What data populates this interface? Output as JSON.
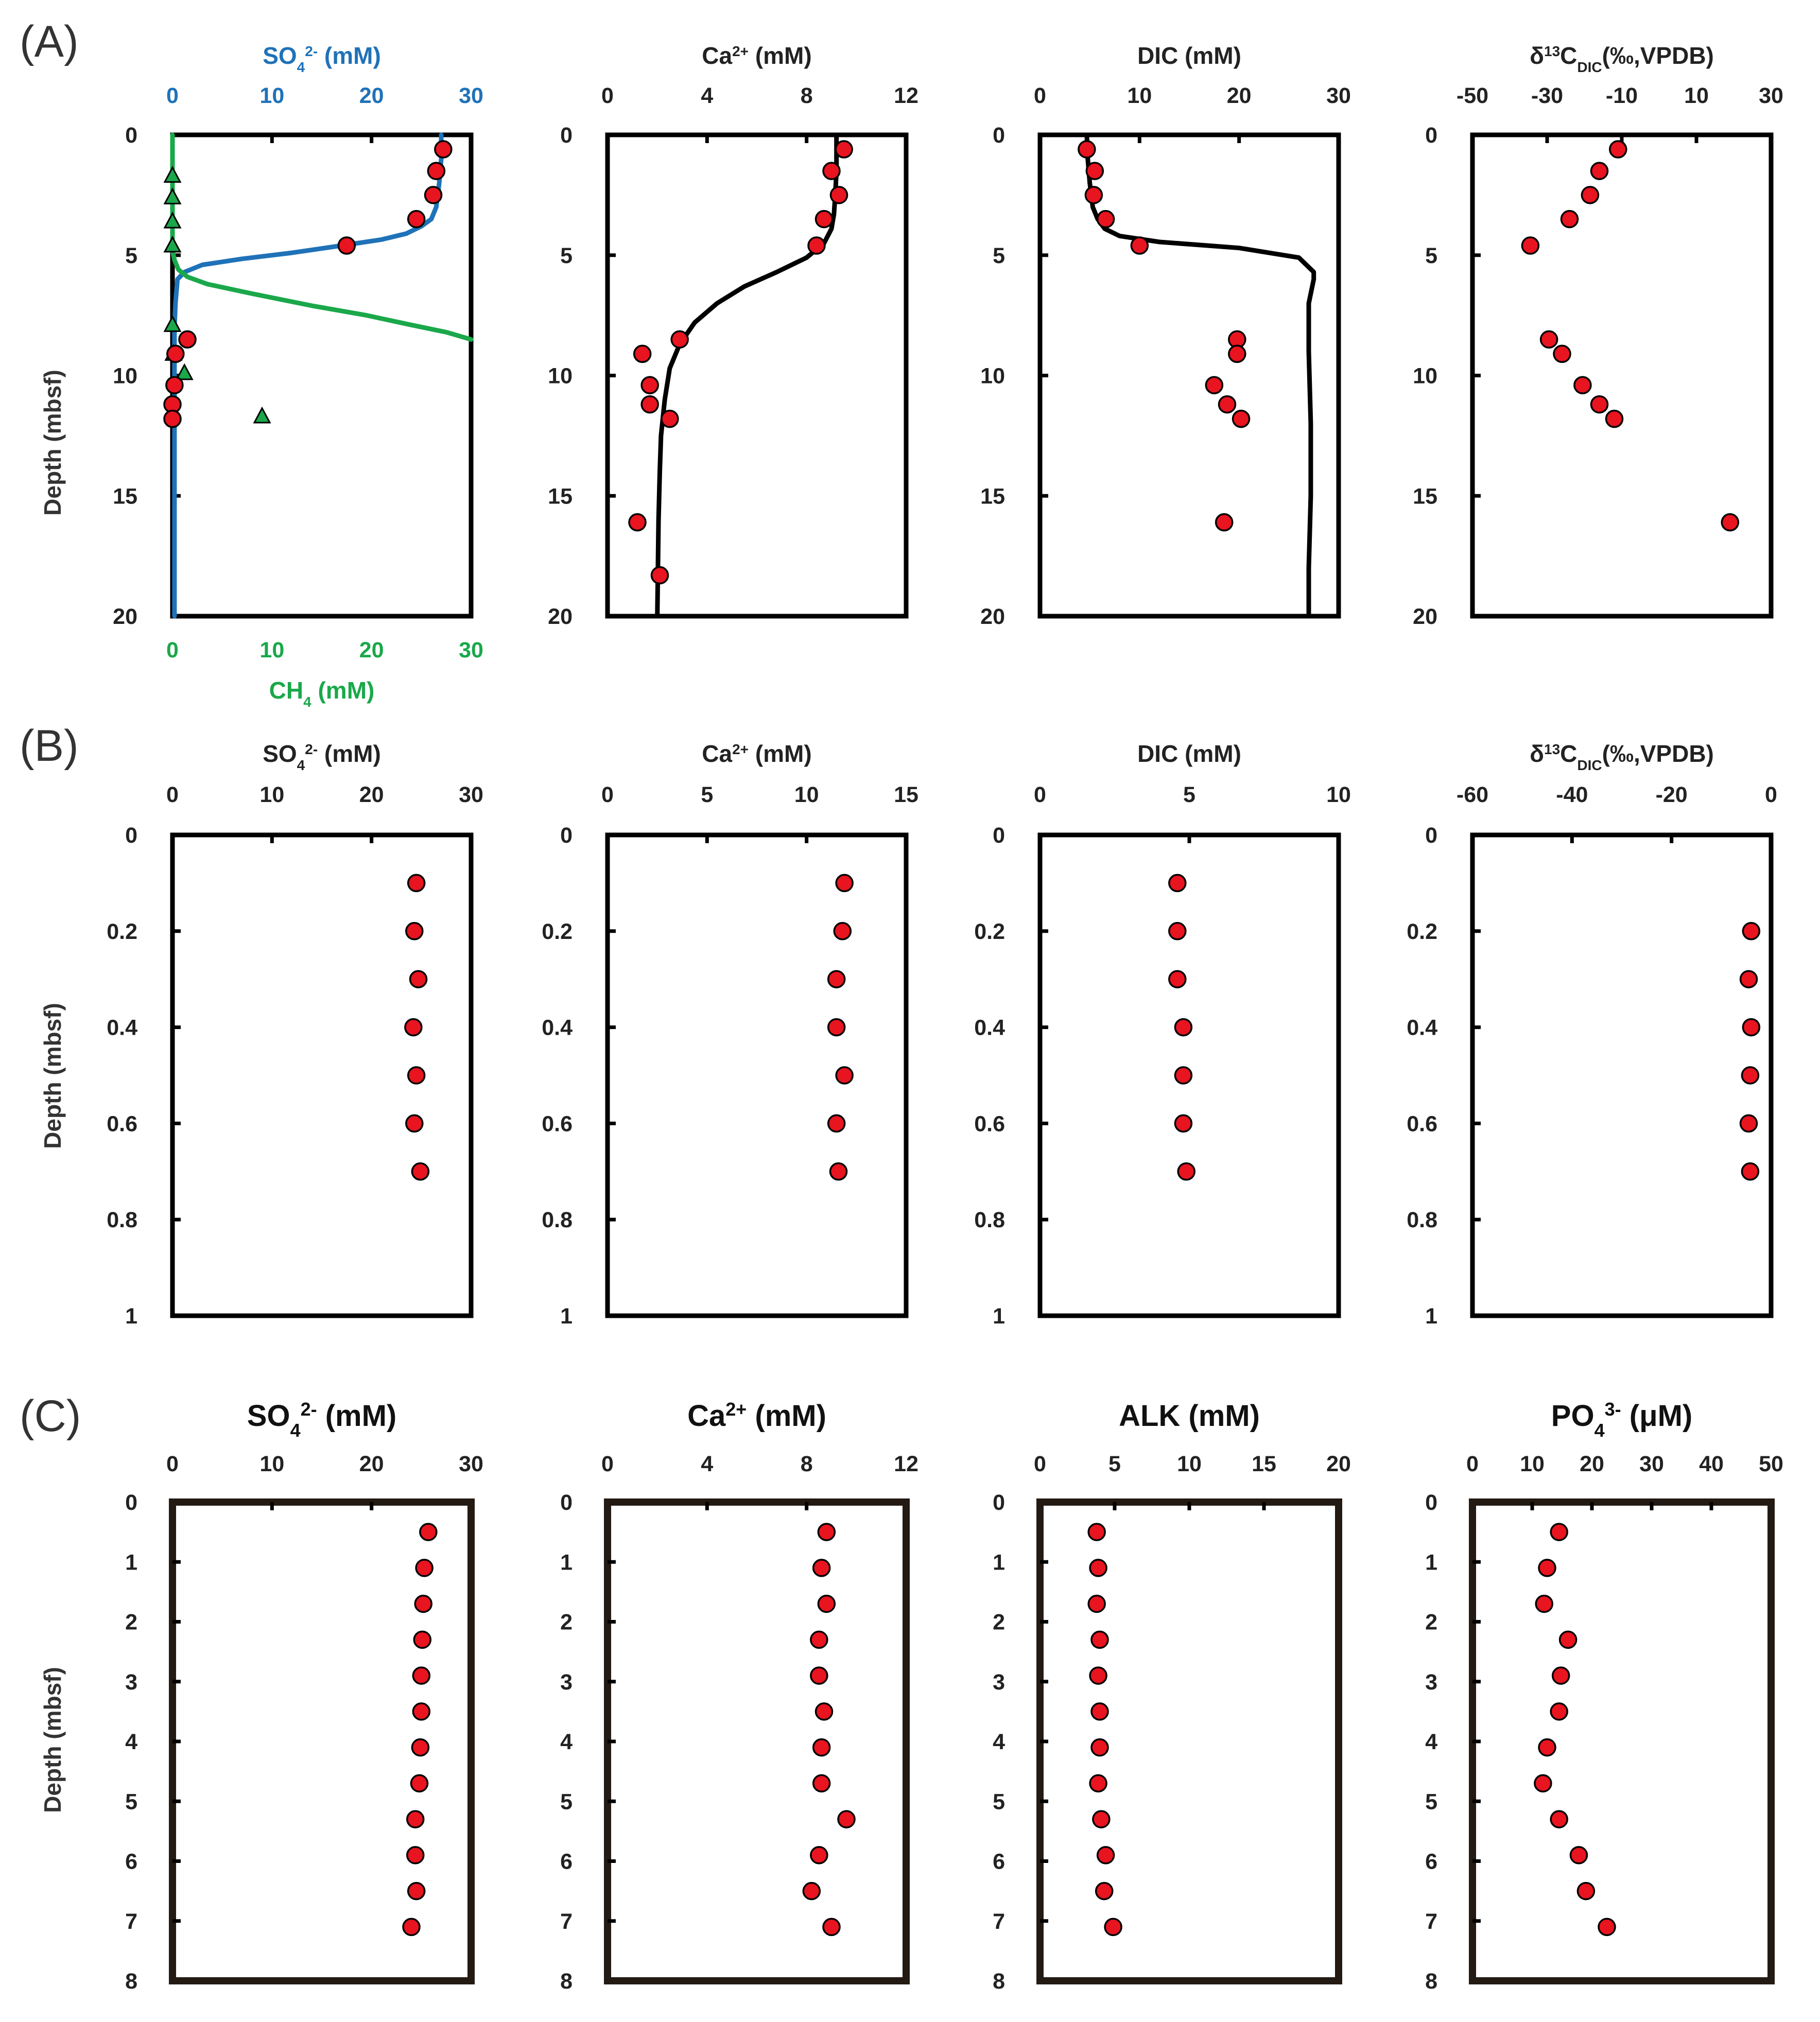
{
  "figure": {
    "ylabel": "Depth (mbsf)",
    "colors": {
      "point": "#e8141f",
      "sulfate": "#1f72b8",
      "methane": "#1aa84a",
      "frame": "#000000"
    },
    "rows": [
      {
        "letter": "(A)",
        "yticks": [
          "0",
          "5",
          "10",
          "15",
          "20"
        ],
        "chart_data": [
          {
            "type": "line",
            "title": "SO42- (mM)",
            "title_parts": [
              "SO",
              "4",
              "2-",
              " (mM)"
            ],
            "title_color": "#1f72b8",
            "tick_color": "#1f72b8",
            "xlim": [
              0,
              30
            ],
            "ylim": [
              0,
              20
            ],
            "xticks": [
              "0",
              "10",
              "20",
              "30"
            ],
            "bottom_axis": {
              "title_parts": [
                "CH",
                "4",
                "",
                " (mM)"
              ],
              "color": "#1aa84a",
              "xticks": [
                "0",
                "10",
                "20",
                "30"
              ],
              "xlim": [
                0,
                30
              ]
            },
            "series": [
              {
                "name": "SO4 model",
                "kind": "line",
                "color": "#1f72b8",
                "x": [
                  27,
                  27,
                  26.8,
                  26.5,
                  26,
                  25,
                  23.5,
                  21,
                  17,
                  12,
                  7,
                  3,
                  1.2,
                  0.5,
                  0.3,
                  0.2,
                  0.2,
                  0.2,
                  0.2,
                  0.2,
                  0.2
                ],
                "y": [
                  0,
                  1,
                  2,
                  3,
                  3.5,
                  3.8,
                  4.1,
                  4.35,
                  4.6,
                  4.9,
                  5.15,
                  5.4,
                  5.7,
                  6,
                  7,
                  8,
                  10,
                  12,
                  15,
                  18,
                  20
                ]
              },
              {
                "name": "CH4 model",
                "kind": "line",
                "color": "#1aa84a",
                "x": [
                  0,
                  0,
                  0,
                  0.2,
                  0.6,
                  1.5,
                  3.5,
                  8,
                  14,
                  19.5,
                  24,
                  27.5,
                  30
                ],
                "y": [
                  0,
                  4,
                  4.8,
                  5.2,
                  5.6,
                  5.9,
                  6.2,
                  6.6,
                  7.1,
                  7.5,
                  7.9,
                  8.2,
                  8.5
                ]
              },
              {
                "name": "CH4 measured",
                "kind": "triangle",
                "color": "#1aa84a",
                "x": [
                  0,
                  0,
                  0,
                  0,
                  0,
                  0.1,
                  1.2,
                  9
                ],
                "y": [
                  1.7,
                  2.6,
                  3.6,
                  4.6,
                  7.9,
                  9.1,
                  9.9,
                  11.7
                ]
              },
              {
                "name": "SO4 measured",
                "kind": "point",
                "x": [
                  27.2,
                  26.5,
                  26.2,
                  24.5,
                  17.5,
                  1.5,
                  0.3,
                  0.2,
                  0,
                  0
                ],
                "y": [
                  0.6,
                  1.5,
                  2.5,
                  3.5,
                  4.6,
                  8.5,
                  9.1,
                  10.4,
                  11.2,
                  11.8
                ]
              }
            ]
          },
          {
            "type": "line",
            "title": "Ca2+ (mM)",
            "title_parts": [
              "Ca",
              "",
              "2+",
              " (mM)"
            ],
            "xlim": [
              0,
              12
            ],
            "ylim": [
              0,
              20
            ],
            "xticks": [
              "0",
              "4",
              "8",
              "12"
            ],
            "series": [
              {
                "name": "Ca model",
                "kind": "line",
                "color": "#000000",
                "x": [
                  9.2,
                  9.2,
                  9.15,
                  9.1,
                  9.0,
                  8.7,
                  8.0,
                  6.8,
                  5.5,
                  4.4,
                  3.5,
                  2.9,
                  2.5,
                  2.3,
                  2.15,
                  2.1,
                  2.05,
                  2.0
                ],
                "y": [
                  0,
                  1.5,
                  2.5,
                  3.3,
                  3.9,
                  4.5,
                  5.1,
                  5.7,
                  6.3,
                  7.0,
                  7.8,
                  8.7,
                  9.7,
                  11,
                  12.5,
                  14,
                  16,
                  20
                ]
              },
              {
                "name": "Ca measured",
                "kind": "point",
                "x": [
                  9.5,
                  9.0,
                  9.3,
                  8.7,
                  8.4,
                  2.9,
                  1.4,
                  1.7,
                  1.7,
                  2.5,
                  1.2,
                  2.1
                ],
                "y": [
                  0.6,
                  1.5,
                  2.5,
                  3.5,
                  4.6,
                  8.5,
                  9.1,
                  10.4,
                  11.2,
                  11.8,
                  16.1,
                  18.3
                ]
              }
            ]
          },
          {
            "type": "line",
            "title": "DIC (mM)",
            "title_parts": [
              "DIC",
              "",
              "",
              " (mM)"
            ],
            "xlim": [
              0,
              30
            ],
            "ylim": [
              0,
              20
            ],
            "xticks": [
              "0",
              "10",
              "20",
              "30"
            ],
            "series": [
              {
                "name": "DIC model",
                "kind": "line",
                "color": "#000000",
                "x": [
                  4.7,
                  4.8,
                  5.0,
                  5.3,
                  5.8,
                  6.5,
                  8,
                  12,
                  20,
                  26,
                  27.5,
                  27.5,
                  27,
                  27,
                  27.2,
                  27.2,
                  27,
                  27
                ],
                "y": [
                  0,
                  1,
                  2,
                  3,
                  3.5,
                  3.9,
                  4.2,
                  4.45,
                  4.7,
                  5.1,
                  5.7,
                  6.0,
                  7,
                  9,
                  12,
                  15,
                  18,
                  20
                ]
              },
              {
                "name": "DIC measured",
                "kind": "point",
                "x": [
                  4.7,
                  5.5,
                  5.4,
                  6.6,
                  10,
                  19.8,
                  19.8,
                  17.5,
                  18.8,
                  20.2,
                  18.5
                ],
                "y": [
                  0.6,
                  1.5,
                  2.5,
                  3.5,
                  4.6,
                  8.5,
                  9.1,
                  10.4,
                  11.2,
                  11.8,
                  16.1
                ]
              }
            ]
          },
          {
            "type": "scatter",
            "title": "δ13CDIC (‰, VPDB)",
            "title_parts": [
              "δ",
              "DIC",
              "13",
              "C",
              "(‰,VPDB)"
            ],
            "xlim": [
              -50,
              30
            ],
            "ylim": [
              0,
              20
            ],
            "xticks": [
              "-50",
              "-30",
              "-10",
              "10",
              "30"
            ],
            "series": [
              {
                "name": "δ13C-DIC",
                "kind": "point",
                "x": [
                  -11,
                  -16,
                  -18.5,
                  -24,
                  -34.5,
                  -29.5,
                  -26,
                  -20.5,
                  -16,
                  -12,
                  19
                ],
                "y": [
                  0.6,
                  1.5,
                  2.5,
                  3.5,
                  4.6,
                  8.5,
                  9.1,
                  10.4,
                  11.2,
                  11.8,
                  16.1
                ]
              }
            ]
          }
        ]
      },
      {
        "letter": "(B)",
        "yticks": [
          "0",
          "0.2",
          "0.4",
          "0.6",
          "0.8",
          "1"
        ],
        "chart_data": [
          {
            "type": "scatter",
            "title": "SO42- (mM)",
            "title_parts": [
              "SO",
              "4",
              "2-",
              " (mM)"
            ],
            "xlim": [
              0,
              30
            ],
            "ylim": [
              0,
              1
            ],
            "xticks": [
              "0",
              "10",
              "20",
              "30"
            ],
            "series": [
              {
                "name": "SO4",
                "kind": "point",
                "x": [
                  24.5,
                  24.3,
                  24.7,
                  24.2,
                  24.5,
                  24.3,
                  24.9
                ],
                "y": [
                  0.1,
                  0.2,
                  0.3,
                  0.4,
                  0.5,
                  0.6,
                  0.7
                ]
              }
            ]
          },
          {
            "type": "scatter",
            "title": "Ca2+ (mM)",
            "title_parts": [
              "Ca",
              "",
              "2+",
              " (mM)"
            ],
            "xlim": [
              0,
              15
            ],
            "ylim": [
              0,
              1
            ],
            "xticks": [
              "0",
              "5",
              "10",
              "15"
            ],
            "series": [
              {
                "name": "Ca",
                "kind": "point",
                "x": [
                  11.9,
                  11.8,
                  11.5,
                  11.5,
                  11.9,
                  11.5,
                  11.6
                ],
                "y": [
                  0.1,
                  0.2,
                  0.3,
                  0.4,
                  0.5,
                  0.6,
                  0.7
                ]
              }
            ]
          },
          {
            "type": "scatter",
            "title": "DIC (mM)",
            "title_parts": [
              "DIC",
              "",
              "",
              " (mM)"
            ],
            "xlim": [
              0,
              10
            ],
            "ylim": [
              0,
              1
            ],
            "xticks": [
              "0",
              "5",
              "10"
            ],
            "series": [
              {
                "name": "DIC",
                "kind": "point",
                "x": [
                  4.6,
                  4.6,
                  4.6,
                  4.8,
                  4.8,
                  4.8,
                  4.9
                ],
                "y": [
                  0.1,
                  0.2,
                  0.3,
                  0.4,
                  0.5,
                  0.6,
                  0.7
                ]
              }
            ]
          },
          {
            "type": "scatter",
            "title": "δ13CDIC (‰, VPDB)",
            "title_parts": [
              "δ",
              "DIC",
              "13",
              "C",
              "(‰,VPDB)"
            ],
            "xlim": [
              -60,
              0
            ],
            "ylim": [
              0,
              1
            ],
            "xticks": [
              "-60",
              "-40",
              "-20",
              "0"
            ],
            "series": [
              {
                "name": "δ13C-DIC",
                "kind": "point",
                "x": [
                  -4,
                  -4.5,
                  -4,
                  -4.2,
                  -4.5,
                  -4.2
                ],
                "y": [
                  0.2,
                  0.3,
                  0.4,
                  0.5,
                  0.6,
                  0.7
                ]
              }
            ]
          }
        ]
      },
      {
        "letter": "(C)",
        "yticks": [
          "0",
          "1",
          "2",
          "3",
          "4",
          "5",
          "6",
          "7",
          "8"
        ],
        "chart_data": [
          {
            "type": "scatter",
            "title": "SO42- (mM)",
            "title_parts": [
              "SO",
              "4",
              "2-",
              " (mM)"
            ],
            "xlim": [
              0,
              30
            ],
            "ylim": [
              0,
              8
            ],
            "xticks": [
              "0",
              "10",
              "20",
              "30"
            ],
            "series": [
              {
                "name": "SO4",
                "kind": "point",
                "x": [
                  25.7,
                  25.3,
                  25.2,
                  25.1,
                  25.0,
                  25.0,
                  24.9,
                  24.8,
                  24.4,
                  24.4,
                  24.5,
                  24.0
                ],
                "y": [
                  0.5,
                  1.1,
                  1.7,
                  2.3,
                  2.9,
                  3.5,
                  4.1,
                  4.7,
                  5.3,
                  5.9,
                  6.5,
                  7.1
                ]
              }
            ]
          },
          {
            "type": "scatter",
            "title": "Ca2+ (mM)",
            "title_parts": [
              "Ca",
              "",
              "2+",
              " (mM)"
            ],
            "xlim": [
              0,
              12
            ],
            "ylim": [
              0,
              8
            ],
            "xticks": [
              "0",
              "4",
              "8",
              "12"
            ],
            "series": [
              {
                "name": "Ca",
                "kind": "point",
                "x": [
                  8.8,
                  8.6,
                  8.8,
                  8.5,
                  8.5,
                  8.7,
                  8.6,
                  8.6,
                  9.6,
                  8.5,
                  8.2,
                  9.0
                ],
                "y": [
                  0.5,
                  1.1,
                  1.7,
                  2.3,
                  2.9,
                  3.5,
                  4.1,
                  4.7,
                  5.3,
                  5.9,
                  6.5,
                  7.1
                ]
              }
            ]
          },
          {
            "type": "scatter",
            "title": "ALK (mM)",
            "title_parts": [
              "ALK",
              "",
              "",
              " (mM)"
            ],
            "xlim": [
              0,
              20
            ],
            "ylim": [
              0,
              8
            ],
            "xticks": [
              "0",
              "5",
              "10",
              "15",
              "20"
            ],
            "series": [
              {
                "name": "ALK",
                "kind": "point",
                "x": [
                  3.8,
                  3.9,
                  3.8,
                  4.0,
                  3.9,
                  4.0,
                  4.0,
                  3.9,
                  4.1,
                  4.4,
                  4.3,
                  4.9
                ],
                "y": [
                  0.5,
                  1.1,
                  1.7,
                  2.3,
                  2.9,
                  3.5,
                  4.1,
                  4.7,
                  5.3,
                  5.9,
                  6.5,
                  7.1
                ]
              }
            ]
          },
          {
            "type": "scatter",
            "title": "PO43- (μM)",
            "title_parts": [
              "PO",
              "4",
              "3-",
              " (μM)"
            ],
            "xlim": [
              0,
              50
            ],
            "ylim": [
              0,
              8
            ],
            "xticks": [
              "0",
              "10",
              "20",
              "30",
              "40",
              "50"
            ],
            "series": [
              {
                "name": "PO4",
                "kind": "point",
                "x": [
                  14.5,
                  12.5,
                  12.0,
                  16.0,
                  14.8,
                  14.5,
                  12.5,
                  11.8,
                  14.5,
                  17.8,
                  19.0,
                  22.5
                ],
                "y": [
                  0.5,
                  1.1,
                  1.7,
                  2.3,
                  2.9,
                  3.5,
                  4.1,
                  4.7,
                  5.3,
                  5.9,
                  6.5,
                  7.1
                ]
              }
            ]
          }
        ]
      }
    ]
  }
}
